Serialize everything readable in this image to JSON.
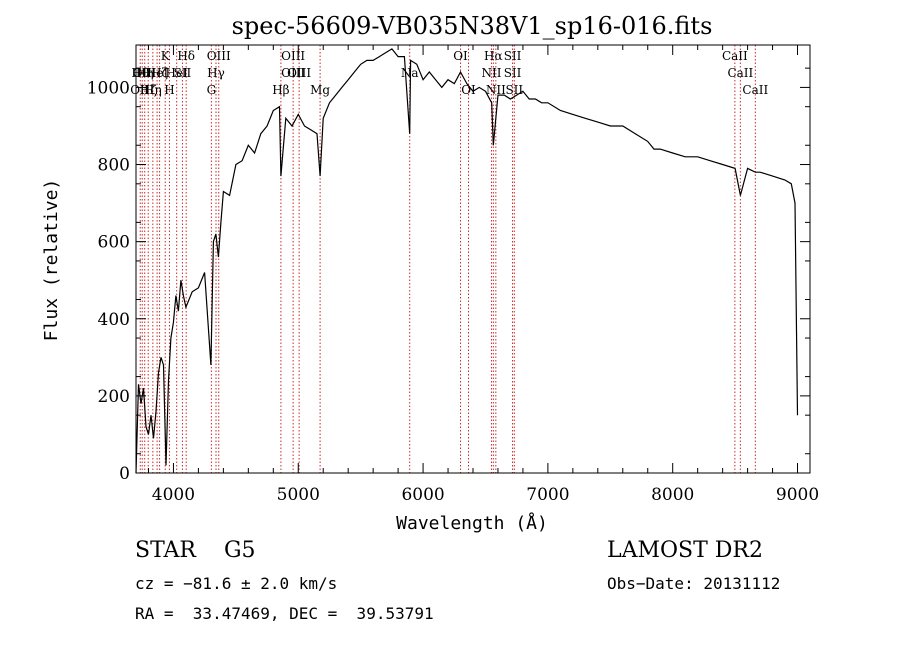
{
  "chart_data": {
    "type": "line",
    "title": "spec-56609-VB035N38V1_sp16-016.fits",
    "xlabel": "Wavelength (Å)",
    "ylabel": "Flux (relative)",
    "xlim": [
      3700,
      9100
    ],
    "ylim": [
      0,
      1110
    ],
    "xticks": [
      4000,
      5000,
      6000,
      7000,
      8000,
      9000
    ],
    "yticks": [
      0,
      200,
      400,
      600,
      800,
      1000
    ],
    "grid": false,
    "legend": "none",
    "series": [
      {
        "x": [
          3700,
          3720,
          3740,
          3760,
          3780,
          3800,
          3820,
          3840,
          3860,
          3880,
          3900,
          3920,
          3940,
          3960,
          3980,
          4000,
          4020,
          4040,
          4060,
          4080,
          4100,
          4150,
          4200,
          4250,
          4300,
          4320,
          4340,
          4360,
          4380,
          4400,
          4450,
          4500,
          4550,
          4600,
          4650,
          4700,
          4750,
          4800,
          4850,
          4861,
          4900,
          4950,
          5000,
          5050,
          5100,
          5150,
          5175,
          5200,
          5250,
          5300,
          5350,
          5400,
          5450,
          5500,
          5550,
          5600,
          5650,
          5700,
          5750,
          5800,
          5850,
          5893,
          5900,
          5950,
          6000,
          6050,
          6100,
          6150,
          6200,
          6250,
          6300,
          6350,
          6400,
          6450,
          6500,
          6550,
          6563,
          6600,
          6650,
          6700,
          6750,
          6800,
          6850,
          6900,
          6950,
          7000,
          7100,
          7200,
          7300,
          7400,
          7500,
          7600,
          7700,
          7800,
          7850,
          7900,
          8000,
          8100,
          8200,
          8300,
          8400,
          8500,
          8542,
          8600,
          8662,
          8700,
          8800,
          8900,
          8950,
          8980,
          9000
        ],
        "values": [
          0,
          230,
          180,
          220,
          120,
          100,
          150,
          90,
          160,
          260,
          300,
          280,
          20,
          240,
          350,
          390,
          460,
          420,
          500,
          460,
          430,
          470,
          480,
          520,
          280,
          600,
          620,
          560,
          650,
          730,
          720,
          800,
          810,
          850,
          830,
          880,
          900,
          940,
          950,
          770,
          920,
          900,
          930,
          900,
          890,
          880,
          770,
          920,
          960,
          980,
          1000,
          1020,
          1040,
          1060,
          1070,
          1070,
          1080,
          1090,
          1100,
          1080,
          1080,
          880,
          1070,
          1060,
          1020,
          1040,
          1020,
          1000,
          1020,
          1010,
          1040,
          1010,
          990,
          1000,
          990,
          960,
          850,
          980,
          980,
          970,
          980,
          990,
          970,
          970,
          960,
          960,
          940,
          930,
          920,
          910,
          900,
          900,
          880,
          860,
          840,
          840,
          830,
          820,
          820,
          810,
          800,
          790,
          720,
          790,
          780,
          780,
          770,
          760,
          750,
          700,
          150
        ]
      }
    ],
    "annotations": [
      {
        "w": 3734,
        "upper": "Hθ"
      },
      {
        "w": 3750,
        "upper": "OII",
        "lower": "OIII"
      },
      {
        "w": 3770,
        "upper": "Hη"
      },
      {
        "w": 3798,
        "lower": "Hζ"
      },
      {
        "w": 3835,
        "lower": "Hη"
      },
      {
        "w": 3869,
        "upper": "HeI"
      },
      {
        "w": 3889,
        "upper": "Hζ"
      },
      {
        "w": 3934,
        "top": "K"
      },
      {
        "w": 3968,
        "lower": "H"
      },
      {
        "w": 4026,
        "upper": "HeI"
      },
      {
        "w": 4072,
        "upper": "SII"
      },
      {
        "w": 4102,
        "top": "Hδ"
      },
      {
        "w": 4304,
        "lower": "G"
      },
      {
        "w": 4341,
        "upper": "Hγ"
      },
      {
        "w": 4363,
        "top": "OIII"
      },
      {
        "w": 4861,
        "lower": "Hβ"
      },
      {
        "w": 4959,
        "top": "OIII",
        "upper": "OIII"
      },
      {
        "w": 5007,
        "upper": "OIII"
      },
      {
        "w": 5175,
        "lower": "Mg"
      },
      {
        "w": 5893,
        "upper": "Na"
      },
      {
        "w": 6300,
        "top": "OI"
      },
      {
        "w": 6364,
        "lower": "OI"
      },
      {
        "w": 6548,
        "upper": "NII"
      },
      {
        "w": 6563,
        "top": "Hα"
      },
      {
        "w": 6583,
        "lower": "NII"
      },
      {
        "w": 6717,
        "top": "SII",
        "upper": "SII"
      },
      {
        "w": 6731,
        "lower": "SII"
      },
      {
        "w": 8498,
        "top": "CaII"
      },
      {
        "w": 8542,
        "upper": "CaII"
      },
      {
        "w": 8662,
        "lower": "CaII"
      }
    ]
  },
  "info": {
    "class_label": "STAR",
    "subclass": "G5",
    "survey": "LAMOST DR2",
    "cz": "cz = −81.6 ± 2.0 km/s",
    "obs_date": "Obs−Date: 20131112",
    "coords": "RA =  33.47469, DEC =  39.53791"
  }
}
